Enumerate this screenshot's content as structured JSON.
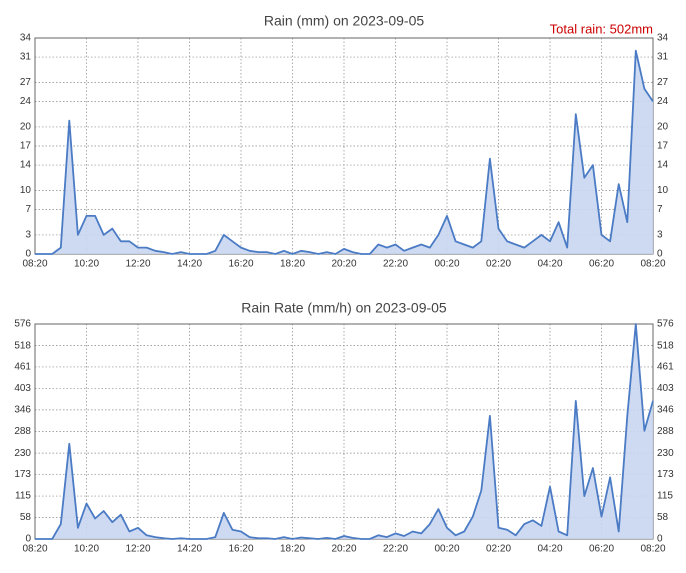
{
  "chart_data": [
    {
      "type": "area",
      "title": "Rain (mm) on 2023-09-05",
      "annotation": "Total rain: 502mm",
      "categories": [
        "08:20",
        null,
        null,
        null,
        null,
        null,
        "10:20",
        null,
        null,
        null,
        null,
        null,
        "12:20",
        null,
        null,
        null,
        null,
        null,
        "14:20",
        null,
        null,
        null,
        null,
        null,
        "16:20",
        null,
        null,
        null,
        null,
        null,
        "18:20",
        null,
        null,
        null,
        null,
        null,
        "20:20",
        null,
        null,
        null,
        null,
        null,
        "22:20",
        null,
        null,
        null,
        null,
        null,
        "00:20",
        null,
        null,
        null,
        null,
        null,
        "02:20",
        null,
        null,
        null,
        null,
        null,
        "04:20",
        null,
        null,
        null,
        null,
        null,
        "06:20",
        null,
        null,
        null,
        null,
        null,
        "08:20"
      ],
      "series": [
        {
          "name": "Rain",
          "color": "#4a7bc4",
          "fill": "#c9d6ef",
          "values": [
            0,
            0,
            0,
            1,
            21,
            3,
            6,
            6,
            3,
            4,
            2,
            2,
            1,
            1,
            0.5,
            0.3,
            0,
            0.3,
            0,
            0,
            0,
            0.5,
            3,
            2,
            1,
            0.5,
            0.3,
            0.3,
            0,
            0.5,
            0,
            0.5,
            0.3,
            0,
            0.3,
            0,
            0.8,
            0.3,
            0,
            0,
            1.5,
            1,
            1.5,
            0.5,
            1,
            1.5,
            1,
            3,
            6,
            2,
            1.5,
            1,
            2,
            15,
            4,
            2,
            1.5,
            1,
            2,
            3,
            2,
            5,
            1,
            22,
            12,
            14,
            3,
            2,
            11,
            5,
            32,
            26,
            24
          ]
        }
      ],
      "ylim": [
        0,
        34
      ],
      "yticks": [
        0,
        3,
        7,
        10,
        14,
        17,
        20,
        24,
        27,
        31,
        34
      ],
      "grid": true
    },
    {
      "type": "area",
      "title": "Rain Rate (mm/h) on 2023-09-05",
      "categories": [
        "08:20",
        null,
        null,
        null,
        null,
        null,
        "10:20",
        null,
        null,
        null,
        null,
        null,
        "12:20",
        null,
        null,
        null,
        null,
        null,
        "14:20",
        null,
        null,
        null,
        null,
        null,
        "16:20",
        null,
        null,
        null,
        null,
        null,
        "18:20",
        null,
        null,
        null,
        null,
        null,
        "20:20",
        null,
        null,
        null,
        null,
        null,
        "22:20",
        null,
        null,
        null,
        null,
        null,
        "00:20",
        null,
        null,
        null,
        null,
        null,
        "02:20",
        null,
        null,
        null,
        null,
        null,
        "04:20",
        null,
        null,
        null,
        null,
        null,
        "06:20",
        null,
        null,
        null,
        null,
        null,
        "08:20"
      ],
      "series": [
        {
          "name": "Rain Rate",
          "color": "#4a7bc4",
          "fill": "#c9d6ef",
          "values": [
            0,
            0,
            0,
            40,
            255,
            30,
            95,
            55,
            75,
            45,
            65,
            20,
            30,
            10,
            5,
            2,
            0,
            2,
            0,
            0,
            0,
            5,
            70,
            25,
            20,
            5,
            2,
            2,
            0,
            5,
            0,
            4,
            2,
            0,
            3,
            0,
            8,
            3,
            0,
            0,
            10,
            5,
            15,
            8,
            20,
            15,
            40,
            80,
            30,
            10,
            20,
            60,
            130,
            330,
            30,
            25,
            10,
            40,
            50,
            35,
            140,
            20,
            10,
            370,
            115,
            190,
            60,
            165,
            20,
            330,
            576,
            290,
            370
          ]
        }
      ],
      "ylim": [
        0,
        576
      ],
      "yticks": [
        0,
        58,
        115,
        173,
        230,
        288,
        346,
        403,
        461,
        518,
        576
      ],
      "grid": true
    }
  ]
}
